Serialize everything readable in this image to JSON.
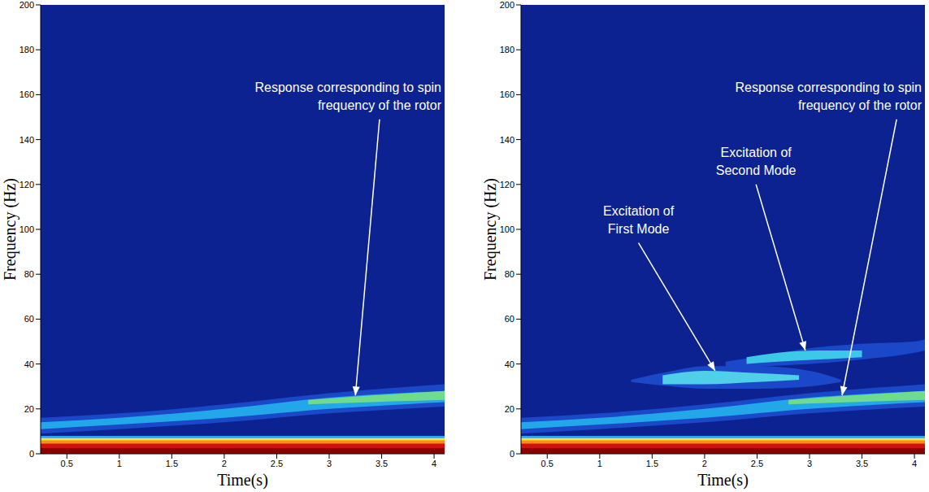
{
  "chart_data": [
    {
      "type": "spectrogram",
      "xlabel": "Time(s)",
      "ylabel": "Frequency (Hz)",
      "xlim": [
        0.25,
        4.1
      ],
      "ylim": [
        0,
        200
      ],
      "xticks": [
        0.5,
        1,
        1.5,
        2,
        2.5,
        3,
        3.5,
        4
      ],
      "yticks": [
        0,
        20,
        40,
        60,
        80,
        100,
        120,
        140,
        160,
        180,
        200
      ],
      "grid": false,
      "color": "#0c2290",
      "bands": [
        {
          "x": [
            0.25,
            4.1
          ],
          "low": [
            0,
            0
          ],
          "high": [
            8,
            8
          ],
          "color": "#2fa0ff"
        },
        {
          "x": [
            0.25,
            4.1
          ],
          "low": [
            0,
            0
          ],
          "high": [
            7,
            7
          ],
          "color": "#ffe033"
        },
        {
          "x": [
            0.25,
            4.1
          ],
          "low": [
            0,
            0
          ],
          "high": [
            6,
            6
          ],
          "color": "#ff8c1a"
        },
        {
          "x": [
            0.25,
            4.1
          ],
          "low": [
            0,
            0
          ],
          "high": [
            4.5,
            4.5
          ],
          "color": "#d01010"
        },
        {
          "x": [
            0.25,
            4.1
          ],
          "low": [
            0,
            0
          ],
          "high": [
            2.5,
            2.5
          ],
          "color": "#8b0000"
        },
        {
          "x": [
            0.25,
            1,
            2,
            3,
            4.1
          ],
          "low": [
            9,
            11,
            14,
            18,
            21
          ],
          "high": [
            16,
            18,
            22,
            27,
            31
          ],
          "color": "#1a48c8"
        },
        {
          "x": [
            0.25,
            1,
            2,
            3,
            4.1
          ],
          "low": [
            11,
            13,
            16,
            20,
            23
          ],
          "high": [
            14,
            16,
            20,
            25,
            28
          ],
          "color": "#22a8e8"
        },
        {
          "x": [
            2.8,
            3.4,
            4.1
          ],
          "low": [
            22,
            23,
            24
          ],
          "high": [
            24,
            26,
            28
          ],
          "color": "#6fdc8c"
        }
      ],
      "annotations": [
        {
          "text": "Response corresponding to spin\nfrequency of the rotor",
          "xy": [
            3.25,
            26
          ],
          "xytext": [
            3.48,
            149
          ]
        }
      ]
    },
    {
      "type": "spectrogram",
      "xlabel": "Time(s)",
      "ylabel": "Frequency (Hz)",
      "xlim": [
        0.25,
        4.1
      ],
      "ylim": [
        0,
        200
      ],
      "xticks": [
        0.5,
        1,
        1.5,
        2,
        2.5,
        3,
        3.5,
        4
      ],
      "yticks": [
        0,
        20,
        40,
        60,
        80,
        100,
        120,
        140,
        160,
        180,
        200
      ],
      "grid": false,
      "color": "#0c2290",
      "bands": [
        {
          "x": [
            0.25,
            4.1
          ],
          "low": [
            0,
            0
          ],
          "high": [
            8,
            8
          ],
          "color": "#2fa0ff"
        },
        {
          "x": [
            0.25,
            4.1
          ],
          "low": [
            0,
            0
          ],
          "high": [
            7,
            7
          ],
          "color": "#ffe033"
        },
        {
          "x": [
            0.25,
            4.1
          ],
          "low": [
            0,
            0
          ],
          "high": [
            6,
            6
          ],
          "color": "#ff8c1a"
        },
        {
          "x": [
            0.25,
            4.1
          ],
          "low": [
            0,
            0
          ],
          "high": [
            4.5,
            4.5
          ],
          "color": "#d01010"
        },
        {
          "x": [
            0.25,
            4.1
          ],
          "low": [
            0,
            0
          ],
          "high": [
            2.5,
            2.5
          ],
          "color": "#8b0000"
        },
        {
          "x": [
            0.25,
            1,
            2,
            3,
            4.1
          ],
          "low": [
            9,
            11,
            14,
            18,
            21
          ],
          "high": [
            16,
            18,
            22,
            27,
            31
          ],
          "color": "#1a48c8"
        },
        {
          "x": [
            0.25,
            1,
            2,
            3,
            4.1
          ],
          "low": [
            11,
            13,
            16,
            20,
            23
          ],
          "high": [
            14,
            16,
            20,
            25,
            28
          ],
          "color": "#22a8e8"
        },
        {
          "x": [
            2.8,
            3.4,
            4.1
          ],
          "low": [
            22,
            23,
            24
          ],
          "high": [
            24,
            26,
            28
          ],
          "color": "#6fdc8c"
        },
        {
          "x": [
            1.3,
            1.7,
            2,
            2.5,
            3,
            3.3
          ],
          "low": [
            32,
            30,
            29,
            29,
            30,
            32
          ],
          "high": [
            33,
            37,
            39,
            39,
            37,
            33
          ],
          "color": "#1a48c8"
        },
        {
          "x": [
            1.6,
            2,
            2.5,
            2.9
          ],
          "low": [
            31,
            31,
            32,
            33
          ],
          "high": [
            35,
            37,
            36,
            35
          ],
          "color": "#4fd0e8"
        },
        {
          "x": [
            2.2,
            2.6,
            3,
            3.5,
            4,
            4.1
          ],
          "low": [
            38,
            39,
            40,
            42,
            45,
            46
          ],
          "high": [
            41,
            44,
            47,
            49,
            50,
            51
          ],
          "color": "#1a48c8"
        },
        {
          "x": [
            2.4,
            2.7,
            3.1,
            3.5
          ],
          "low": [
            40,
            41,
            42,
            43
          ],
          "high": [
            43,
            45,
            46,
            46
          ],
          "color": "#3ec8e8"
        }
      ],
      "annotations": [
        {
          "text": "Excitation of\nFirst Mode",
          "xy": [
            2.1,
            37
          ],
          "xytext": [
            1.37,
            94
          ]
        },
        {
          "text": "Excitation of\nSecond Mode",
          "xy": [
            2.96,
            46
          ],
          "xytext": [
            2.49,
            120
          ]
        },
        {
          "text": "Response corresponding to spin\nfrequency of the rotor",
          "xy": [
            3.31,
            26
          ],
          "xytext": [
            3.83,
            149
          ]
        }
      ]
    }
  ]
}
